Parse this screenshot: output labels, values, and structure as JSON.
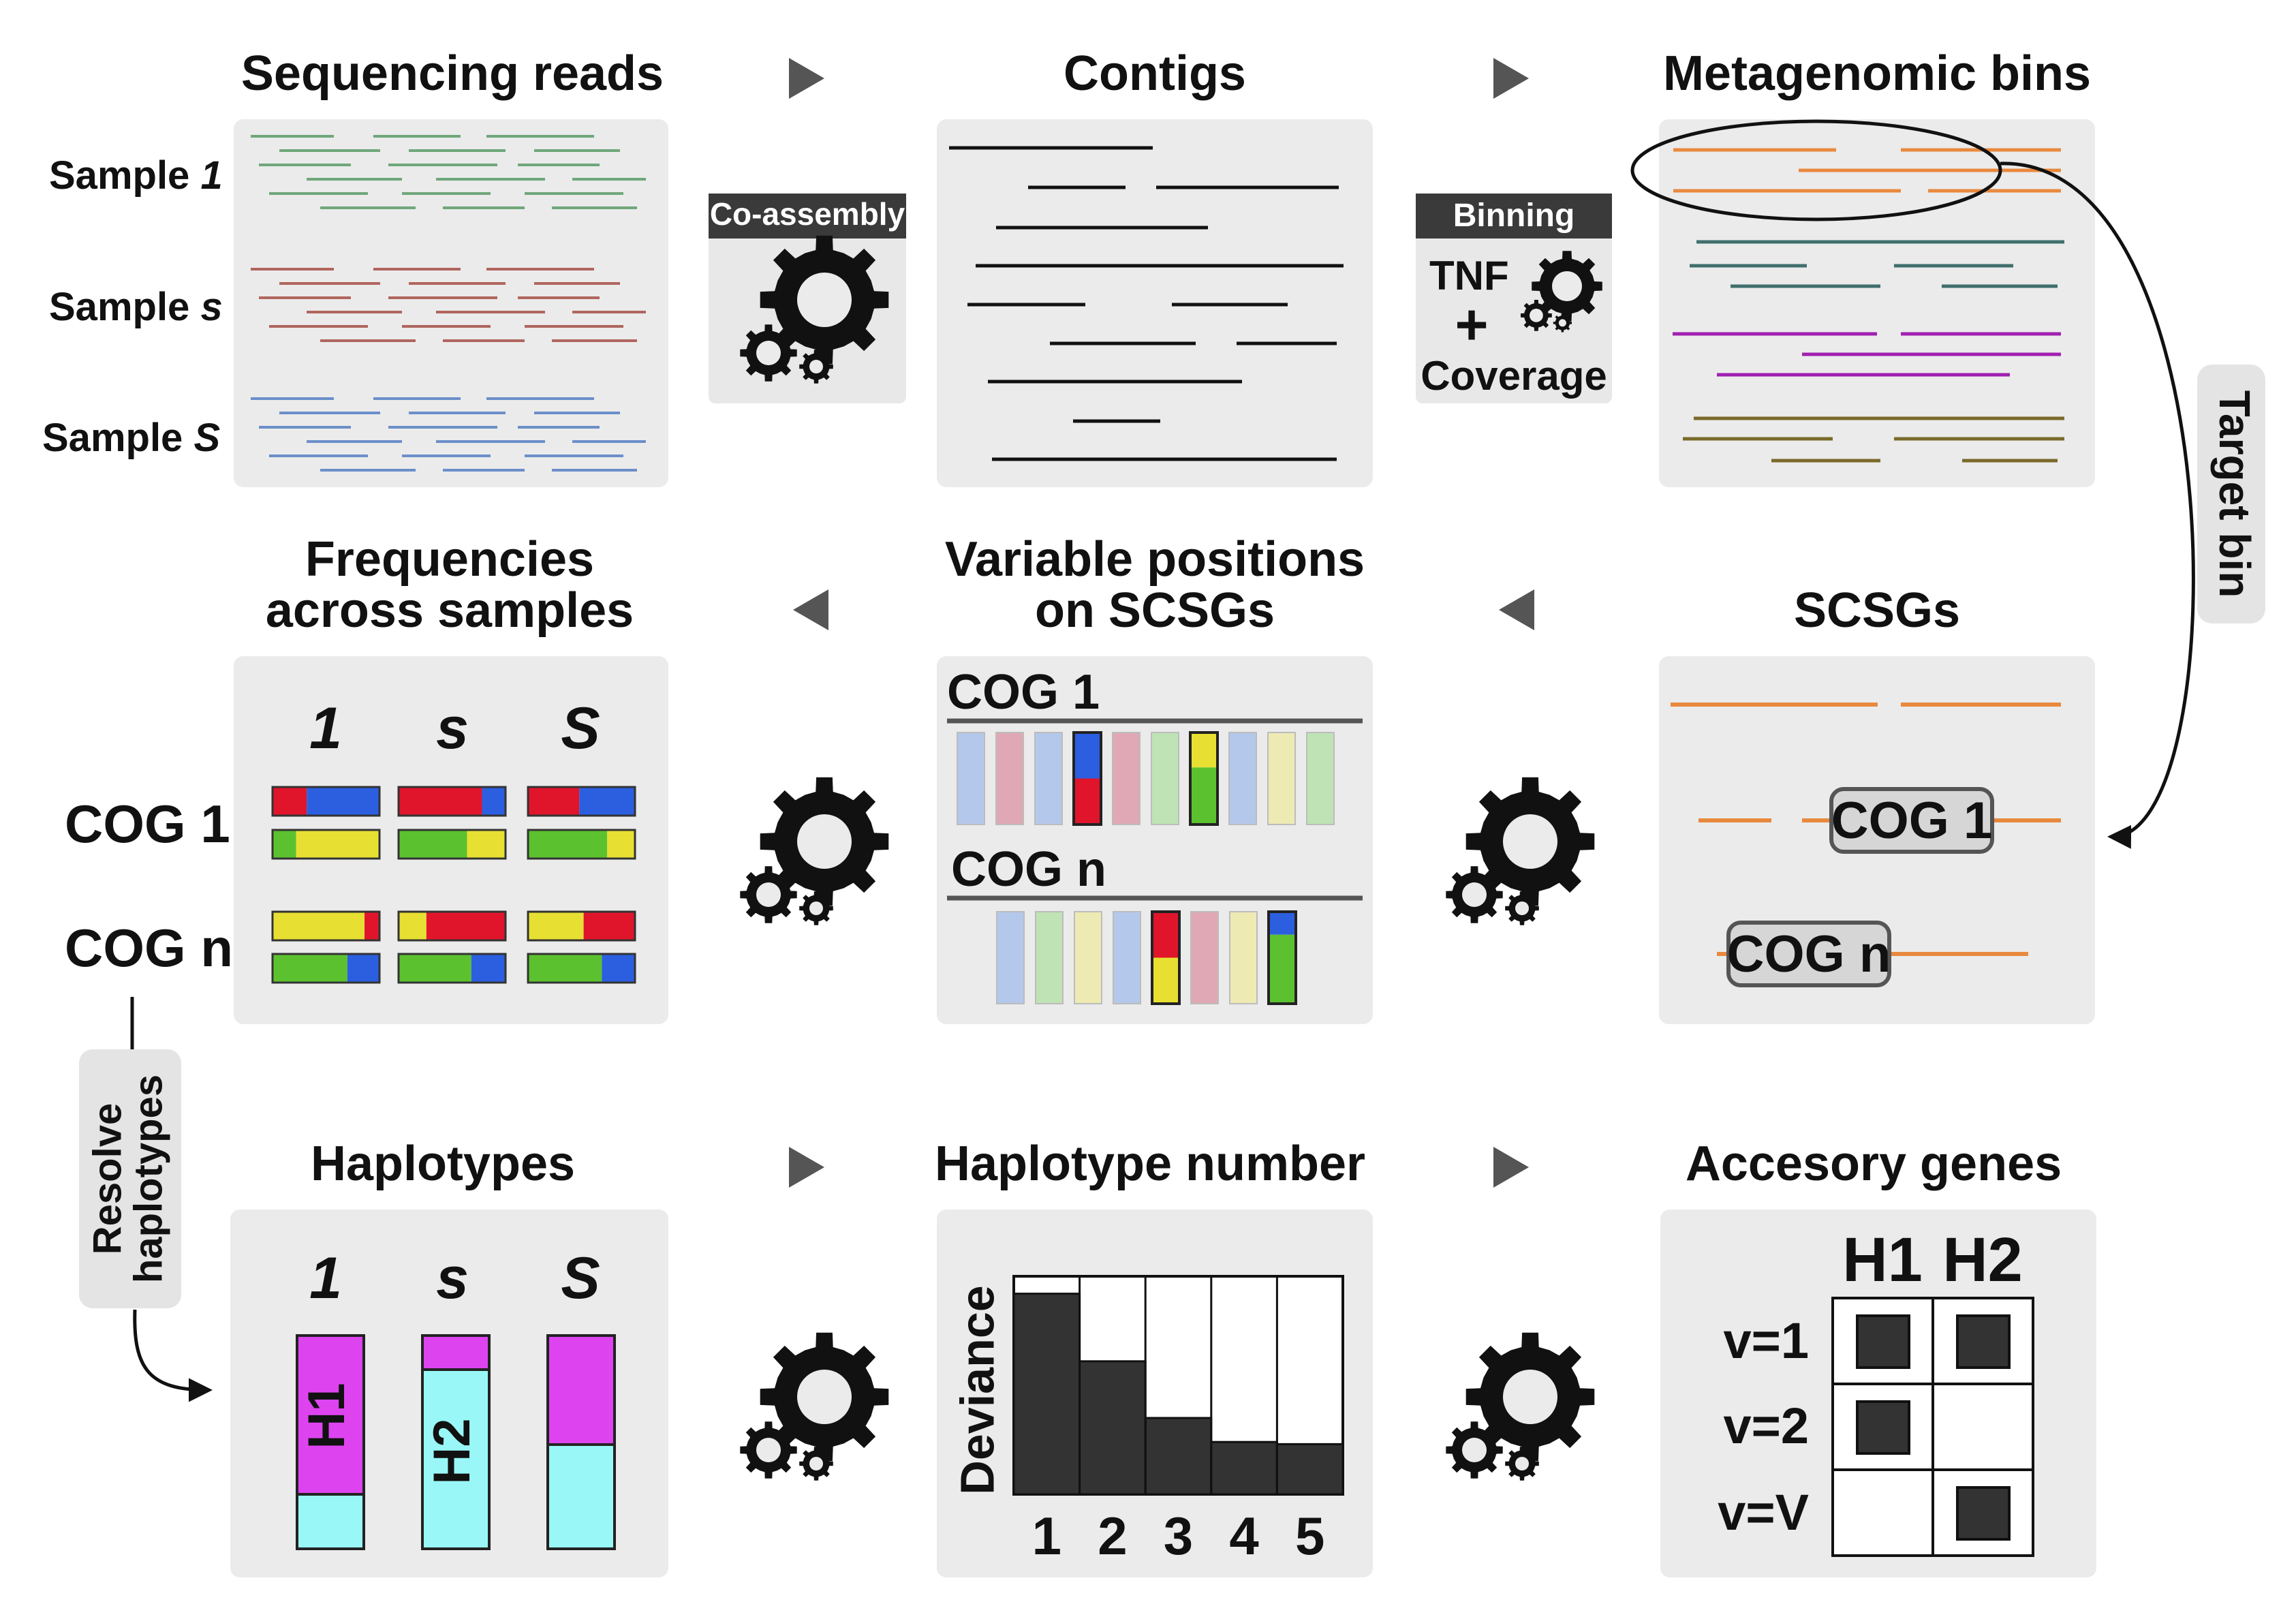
{
  "titles": {
    "sequencing_reads": "Sequencing reads",
    "contigs": "Contigs",
    "metagenomic_bins": "Metagenomic bins",
    "frequencies_line1": "Frequencies",
    "frequencies_line2": "across samples",
    "variable_line1": "Variable positions",
    "variable_line2": "on SCSGs",
    "scsgs": "SCSGs",
    "haplotypes": "Haplotypes",
    "haplotype_number": "Haplotype number",
    "accessory_genes": "Accesory genes"
  },
  "samples": {
    "first": "Sample ",
    "first_italic": "1",
    "mid": "Sample ",
    "mid_italic": "s",
    "last": "Sample ",
    "last_italic": "S"
  },
  "sample_indices": [
    "1",
    "s",
    "S"
  ],
  "steps": {
    "coassembly": "Co-assembly",
    "binning": "Binning",
    "tnf": "TNF",
    "plus": "+",
    "coverage": "Coverage",
    "target_bin": "Target bin",
    "resolve_line1": "Resolve",
    "resolve_line2": "haplotypes"
  },
  "cogs": {
    "cog1": "COG 1",
    "cogn": "COG n"
  },
  "haplotype_labels": {
    "h1": "H1",
    "h2": "H2"
  },
  "deviance": {
    "ylabel": "Deviance",
    "x_ticks": [
      "1",
      "2",
      "3",
      "4",
      "5"
    ],
    "fractions": [
      0.92,
      0.61,
      0.35,
      0.24,
      0.23
    ]
  },
  "accessory": {
    "columns": [
      "H1",
      "H2"
    ],
    "rows": [
      "v=1",
      "v=2",
      "v=V"
    ],
    "presence": [
      [
        true,
        true
      ],
      [
        true,
        false
      ],
      [
        false,
        true
      ]
    ]
  },
  "colors": {
    "reads_sample1": "#6fa77a",
    "reads_samples": "#b0665e",
    "reads_sampleS": "#6b8fc9",
    "bin_orange": "#e8893e",
    "bin_teal": "#3f6f6d",
    "bin_purple": "#a020b0",
    "bin_olive": "#7a6a2a",
    "red": "#e0152b",
    "blue": "#2b5fe0",
    "yellow": "#e7e032",
    "green": "#5cc12f",
    "magenta": "#dd44f0",
    "cyan": "#99f7f7",
    "panel": "#ebebeb"
  }
}
